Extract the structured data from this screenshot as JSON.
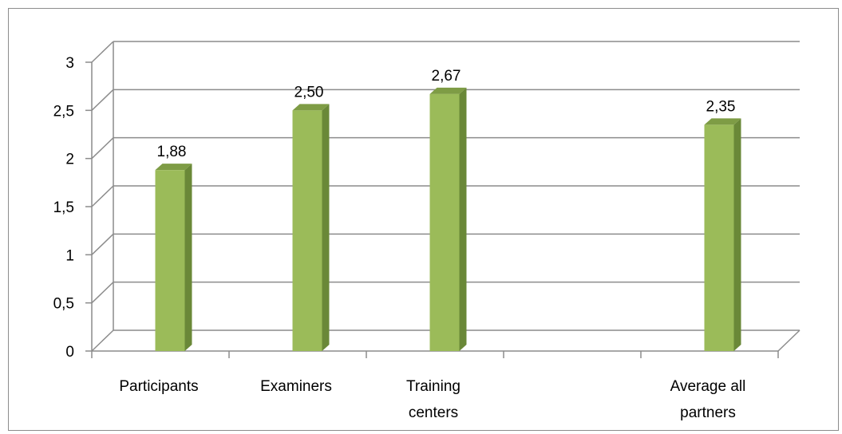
{
  "chart_data": {
    "type": "bar",
    "style": "3d-column",
    "categories": [
      "Participants",
      "Examiners",
      "Training centers",
      "",
      "Average all partners"
    ],
    "category_label_lines": [
      [
        "Participants"
      ],
      [
        "Examiners"
      ],
      [
        "Training",
        "centers"
      ],
      [],
      [
        "Average all",
        "partners"
      ]
    ],
    "values": [
      1.88,
      2.5,
      2.67,
      null,
      2.35
    ],
    "data_labels": [
      "1,88",
      "2,50",
      "2,67",
      "",
      "2,35"
    ],
    "ylim": [
      0,
      3
    ],
    "yticks": [
      0,
      0.5,
      1,
      1.5,
      2,
      2.5,
      3
    ],
    "ytick_labels": [
      "0",
      "0,5",
      "1",
      "1,5",
      "2",
      "2,5",
      "3"
    ],
    "grid": true,
    "legend": "none",
    "colors": {
      "bar_front": "#9bbb59",
      "bar_side": "#6a8838",
      "bar_top": "#7e9c45",
      "grid": "#8c8c8c"
    }
  }
}
